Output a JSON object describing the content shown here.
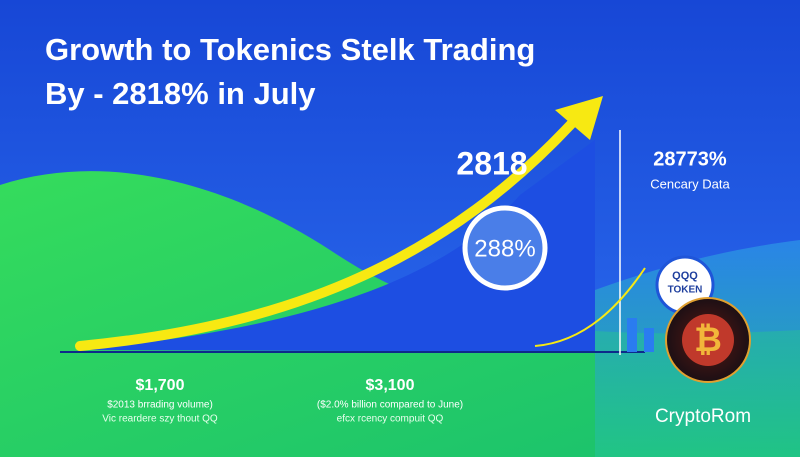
{
  "header": {
    "title_line1": "Growth to Tokenics Stelk Trading",
    "title_line2": "By - 2818% in July"
  },
  "callouts": {
    "main_number": "2818",
    "bubble": "288%",
    "side_number": "28773%",
    "side_label": "Cencary Data",
    "token_top": "QQQ",
    "token_bottom": "TOKEN"
  },
  "stats": [
    {
      "value": "$1,700",
      "line1": "$2013 brrading volume)",
      "line2": "Vic reardere szy thout QQ"
    },
    {
      "value": "$3,100",
      "line1": "($2.0% billion compared to June)",
      "line2": "efcx rcency compuit QQ"
    }
  ],
  "brand": "CryptoRom"
}
